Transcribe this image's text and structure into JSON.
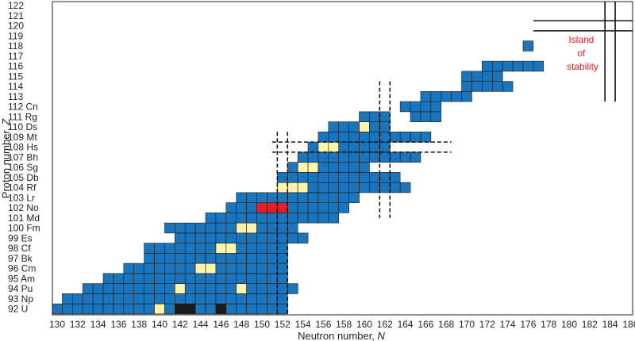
{
  "chart_data": {
    "type": "heatmap",
    "title": "",
    "xlabel": "Neutron number, ",
    "xlabel_var": "N",
    "ylabel": "Proton number, ",
    "ylabel_var": "Z",
    "xlim": [
      130,
      186
    ],
    "ylim": [
      92,
      122
    ],
    "x_ticks": [
      "130",
      "132",
      "134",
      "136",
      "138",
      "140",
      "142",
      "144",
      "146",
      "148",
      "150",
      "152",
      "154",
      "156",
      "158",
      "160",
      "162",
      "164",
      "166",
      "168",
      "170",
      "172",
      "174",
      "176",
      "178",
      "180",
      "182",
      "184",
      "186"
    ],
    "y_ticks": [
      {
        "z": 122,
        "label": "122"
      },
      {
        "z": 121,
        "label": "121"
      },
      {
        "z": 120,
        "label": "120"
      },
      {
        "z": 119,
        "label": "119"
      },
      {
        "z": 118,
        "label": "118"
      },
      {
        "z": 117,
        "label": "117"
      },
      {
        "z": 116,
        "label": "116"
      },
      {
        "z": 115,
        "label": "115"
      },
      {
        "z": 114,
        "label": "114"
      },
      {
        "z": 113,
        "label": "113"
      },
      {
        "z": 112,
        "label": "112 Cn"
      },
      {
        "z": 111,
        "label": "111 Rg"
      },
      {
        "z": 110,
        "label": "110 Ds"
      },
      {
        "z": 109,
        "label": "109 Mt"
      },
      {
        "z": 108,
        "label": "108 Hs"
      },
      {
        "z": 107,
        "label": "107 Bh"
      },
      {
        "z": 106,
        "label": "106 Sg"
      },
      {
        "z": 105,
        "label": "105 Db"
      },
      {
        "z": 104,
        "label": "104 Rf"
      },
      {
        "z": 103,
        "label": "103 Lr"
      },
      {
        "z": 102,
        "label": "102 No"
      },
      {
        "z": 101,
        "label": "101 Md"
      },
      {
        "z": 100,
        "label": "100 Fm"
      },
      {
        "z": 99,
        "label": "99 Es"
      },
      {
        "z": 98,
        "label": "98 Cf"
      },
      {
        "z": 97,
        "label": "97 Bk"
      },
      {
        "z": 96,
        "label": "96 Cm"
      },
      {
        "z": 95,
        "label": "95 Am"
      },
      {
        "z": 94,
        "label": "94 Pu"
      },
      {
        "z": 93,
        "label": "93 Np"
      },
      {
        "z": 92,
        "label": "92 U"
      }
    ],
    "island_label": [
      "Island",
      "of",
      "stability"
    ],
    "colors": {
      "known": "#1b75bc",
      "highlight": "#fff5a8",
      "red": "#e21f26",
      "black": "#1a1a1a",
      "edge": "#1a1a1a",
      "island_text": "#e31e24"
    },
    "magic_numbers": {
      "neutron_dashed": [
        152,
        162
      ],
      "proton_dashed": [
        108
      ],
      "neutron_solid": [
        184
      ],
      "proton_solid": [
        120
      ]
    },
    "rows": [
      {
        "z": 92,
        "n": [
          [
            129,
            152
          ]
        ]
      },
      {
        "z": 93,
        "n": [
          [
            131,
            152
          ]
        ]
      },
      {
        "z": 94,
        "n": [
          [
            133,
            153
          ]
        ]
      },
      {
        "z": 95,
        "n": [
          [
            135,
            152
          ]
        ]
      },
      {
        "z": 96,
        "n": [
          [
            137,
            152
          ]
        ]
      },
      {
        "z": 97,
        "n": [
          [
            139,
            152
          ]
        ]
      },
      {
        "z": 98,
        "n": [
          [
            139,
            152
          ]
        ]
      },
      {
        "z": 99,
        "n": [
          [
            142,
            154
          ]
        ]
      },
      {
        "z": 100,
        "n": [
          [
            141,
            153
          ]
        ]
      },
      {
        "z": 101,
        "n": [
          [
            145,
            157
          ]
        ]
      },
      {
        "z": 102,
        "n": [
          [
            147,
            158
          ]
        ]
      },
      {
        "z": 103,
        "n": [
          [
            148,
            159
          ]
        ]
      },
      {
        "z": 104,
        "n": [
          [
            152,
            164
          ]
        ]
      },
      {
        "z": 105,
        "n": [
          [
            152,
            163
          ]
        ]
      },
      {
        "z": 106,
        "n": [
          [
            153,
            160
          ]
        ]
      },
      {
        "z": 107,
        "n": [
          [
            154,
            165
          ]
        ]
      },
      {
        "z": 108,
        "n": [
          [
            155,
            162
          ]
        ]
      },
      {
        "z": 109,
        "n": [
          [
            156,
            166
          ]
        ]
      },
      {
        "z": 110,
        "n": [
          [
            157,
            162
          ]
        ]
      },
      {
        "z": 111,
        "n": [
          [
            160,
            162
          ],
          [
            165,
            167
          ]
        ]
      },
      {
        "z": 112,
        "n": [
          [
            164,
            167
          ]
        ]
      },
      {
        "z": 113,
        "n": [
          [
            166,
            170
          ]
        ]
      },
      {
        "z": 114,
        "n": [
          [
            170,
            174
          ]
        ]
      },
      {
        "z": 115,
        "n": [
          [
            170,
            173
          ]
        ]
      },
      {
        "z": 116,
        "n": [
          [
            172,
            177
          ]
        ]
      },
      {
        "z": 118,
        "n": [
          [
            176,
            176
          ]
        ]
      }
    ],
    "highlights": [
      {
        "z": 92,
        "n": 140
      },
      {
        "z": 94,
        "n": 142
      },
      {
        "z": 94,
        "n": 148
      },
      {
        "z": 96,
        "n": 144
      },
      {
        "z": 96,
        "n": 145
      },
      {
        "z": 98,
        "n": 146
      },
      {
        "z": 98,
        "n": 147
      },
      {
        "z": 100,
        "n": 148
      },
      {
        "z": 100,
        "n": 149
      },
      {
        "z": 104,
        "n": 152
      },
      {
        "z": 104,
        "n": 153
      },
      {
        "z": 104,
        "n": 154
      },
      {
        "z": 106,
        "n": 154
      },
      {
        "z": 106,
        "n": 155
      },
      {
        "z": 108,
        "n": 156
      },
      {
        "z": 108,
        "n": 157
      },
      {
        "z": 110,
        "n": 160
      }
    ],
    "red_cells": [
      {
        "z": 102,
        "n": 150
      },
      {
        "z": 102,
        "n": 151
      },
      {
        "z": 102,
        "n": 152
      }
    ],
    "black_cells": [
      {
        "z": 92,
        "n": 142
      },
      {
        "z": 92,
        "n": 143
      },
      {
        "z": 92,
        "n": 146
      }
    ]
  }
}
